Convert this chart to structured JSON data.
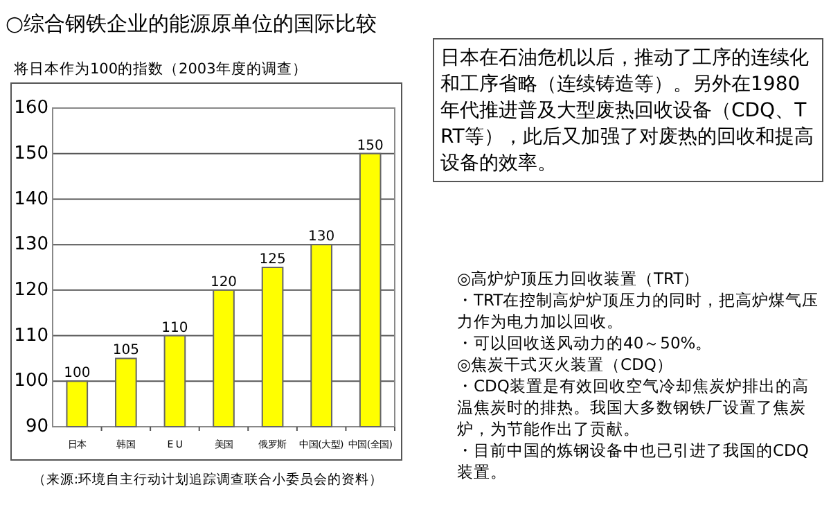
{
  "chart_data": {
    "type": "bar",
    "title": "○综合钢铁企业的能源原单位的国际比较",
    "subtitle": "将日本作为100的指数（2003年度的调查）",
    "categories": [
      "日本",
      "韩国",
      "E U",
      "美国",
      "俄罗斯",
      "中国(大型)",
      "中国(全国)"
    ],
    "values": [
      100,
      105,
      110,
      120,
      125,
      130,
      150
    ],
    "color": "#ffff00",
    "ylim": [
      90,
      160
    ],
    "yticks": [
      90,
      100,
      110,
      120,
      130,
      140,
      150,
      160
    ],
    "grid": "y",
    "data_labels": true,
    "annotations": [
      "日本在石油危机以后，推动了工序的连续化和工序省略（连续铸造等）。另外在1980年代推进普及大型废热回收设备（CDQ、TRT等），此后又加强了对废热的回收和提高设备的效率。",
      "◎高炉炉顶压力回收装置（TRT）",
      "・TRT在控制高炉炉顶压力的同时，把高炉煤气压力作为电力加以回收。",
      "・可以回收送风动力的40～50%。",
      "◎焦炭干式灭火装置（CDQ）",
      "・CDQ装置是有效回收空气冷却焦炭炉排出的高温焦炭时的排热。我国大多数钢铁厂设置了焦炭炉，为节能作出了贡献。",
      "・目前中国的炼钢设备中也已引进了我国的CDQ装置。",
      "（来源:环境自主行动计划追踪调查联合小委员会的资料）"
    ]
  }
}
